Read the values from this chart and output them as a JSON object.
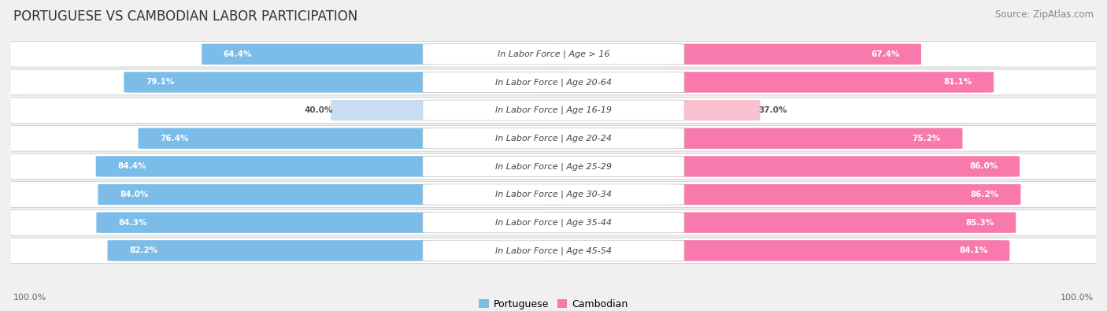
{
  "title": "PORTUGUESE VS CAMBODIAN LABOR PARTICIPATION",
  "source": "Source: ZipAtlas.com",
  "categories": [
    "In Labor Force | Age > 16",
    "In Labor Force | Age 20-64",
    "In Labor Force | Age 16-19",
    "In Labor Force | Age 20-24",
    "In Labor Force | Age 25-29",
    "In Labor Force | Age 30-34",
    "In Labor Force | Age 35-44",
    "In Labor Force | Age 45-54"
  ],
  "portuguese_values": [
    64.4,
    79.1,
    40.0,
    76.4,
    84.4,
    84.0,
    84.3,
    82.2
  ],
  "cambodian_values": [
    67.4,
    81.1,
    37.0,
    75.2,
    86.0,
    86.2,
    85.3,
    84.1
  ],
  "portuguese_color": "#7BBCE8",
  "cambodian_color": "#F87AAD",
  "portuguese_light_color": "#C8DDEF",
  "cambodian_light_color": "#F9C0D0",
  "background_color": "#F0F0F0",
  "row_bg_color": "#FFFFFF",
  "title_fontsize": 12,
  "source_fontsize": 8.5,
  "label_fontsize": 8,
  "value_fontsize": 7.5,
  "legend_fontsize": 9,
  "axis_label_fontsize": 8,
  "max_value": 100.0,
  "low_threshold": 55
}
